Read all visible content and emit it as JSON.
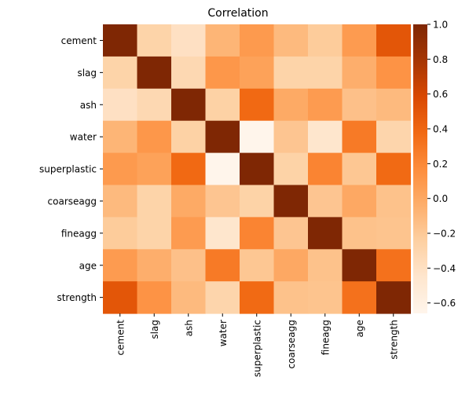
{
  "chart_data": {
    "type": "heatmap",
    "title": "Correlation",
    "rows": [
      "cement",
      "slag",
      "ash",
      "water",
      "superplastic",
      "coarseagg",
      "fineagg",
      "age",
      "strength"
    ],
    "cols": [
      "cement",
      "slag",
      "ash",
      "water",
      "superplastic",
      "coarseagg",
      "fineagg",
      "age",
      "strength"
    ],
    "values": [
      [
        1.0,
        -0.28,
        -0.4,
        -0.08,
        0.09,
        -0.11,
        -0.22,
        0.08,
        0.5
      ],
      [
        -0.28,
        1.0,
        -0.32,
        0.11,
        0.04,
        -0.28,
        -0.28,
        -0.04,
        0.13
      ],
      [
        -0.4,
        -0.32,
        1.0,
        -0.26,
        0.38,
        -0.01,
        0.08,
        -0.15,
        -0.11
      ],
      [
        -0.08,
        0.11,
        -0.26,
        1.0,
        -0.66,
        -0.18,
        -0.45,
        0.28,
        -0.29
      ],
      [
        0.09,
        0.04,
        0.38,
        -0.66,
        1.0,
        -0.27,
        0.22,
        -0.19,
        0.37
      ],
      [
        -0.11,
        -0.28,
        -0.01,
        -0.18,
        -0.27,
        1.0,
        -0.18,
        -0.0,
        -0.16
      ],
      [
        -0.22,
        -0.28,
        0.08,
        -0.45,
        0.22,
        -0.18,
        1.0,
        -0.16,
        -0.17
      ],
      [
        0.08,
        -0.04,
        -0.15,
        0.28,
        -0.19,
        -0.0,
        -0.16,
        1.0,
        0.33
      ],
      [
        0.5,
        0.13,
        -0.11,
        -0.29,
        0.37,
        -0.16,
        -0.17,
        0.33,
        1.0
      ]
    ],
    "colorbar": {
      "min": -0.66,
      "max": 1.0,
      "ticks": [
        1.0,
        0.8,
        0.6,
        0.4,
        0.2,
        0.0,
        -0.2,
        -0.4,
        -0.6
      ],
      "tick_labels": [
        "1.0",
        "0.8",
        "0.6",
        "0.4",
        "0.2",
        "0.0",
        "−0.2",
        "−0.4",
        "−0.6"
      ],
      "colormap": "Oranges"
    }
  }
}
